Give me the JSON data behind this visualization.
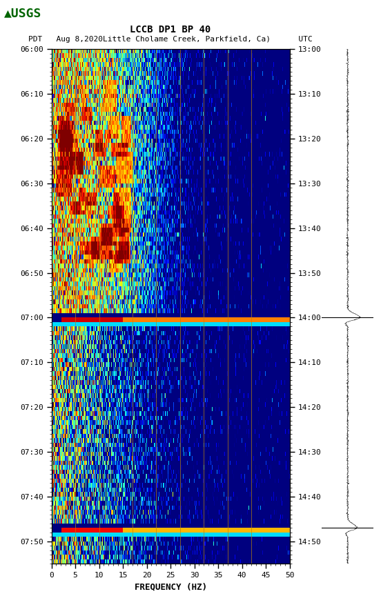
{
  "title_line1": "LCCB DP1 BP 40",
  "title_line2": "PDT   Aug 8,2020 Little Cholame Creek, Parkfield, Ca)      UTC",
  "xlabel": "FREQUENCY (HZ)",
  "ytick_pdt": [
    "06:00",
    "06:10",
    "06:20",
    "06:30",
    "06:40",
    "06:50",
    "07:00",
    "07:10",
    "07:20",
    "07:30",
    "07:40",
    "07:50"
  ],
  "ytick_utc": [
    "13:00",
    "13:10",
    "13:20",
    "13:30",
    "13:40",
    "13:50",
    "14:00",
    "14:10",
    "14:20",
    "14:30",
    "14:40",
    "14:50"
  ],
  "xtick_labels": [
    "0",
    "5",
    "10",
    "15",
    "20",
    "25",
    "30",
    "35",
    "40",
    "45",
    "50"
  ],
  "xtick_positions": [
    0,
    5,
    10,
    15,
    20,
    25,
    30,
    35,
    40,
    45,
    50
  ],
  "vertical_lines_freq": [
    5,
    10,
    17,
    22,
    27,
    32,
    37,
    42
  ],
  "event_rows": [
    60,
    107
  ],
  "n_time": 115,
  "n_freq": 500,
  "seed": 12
}
